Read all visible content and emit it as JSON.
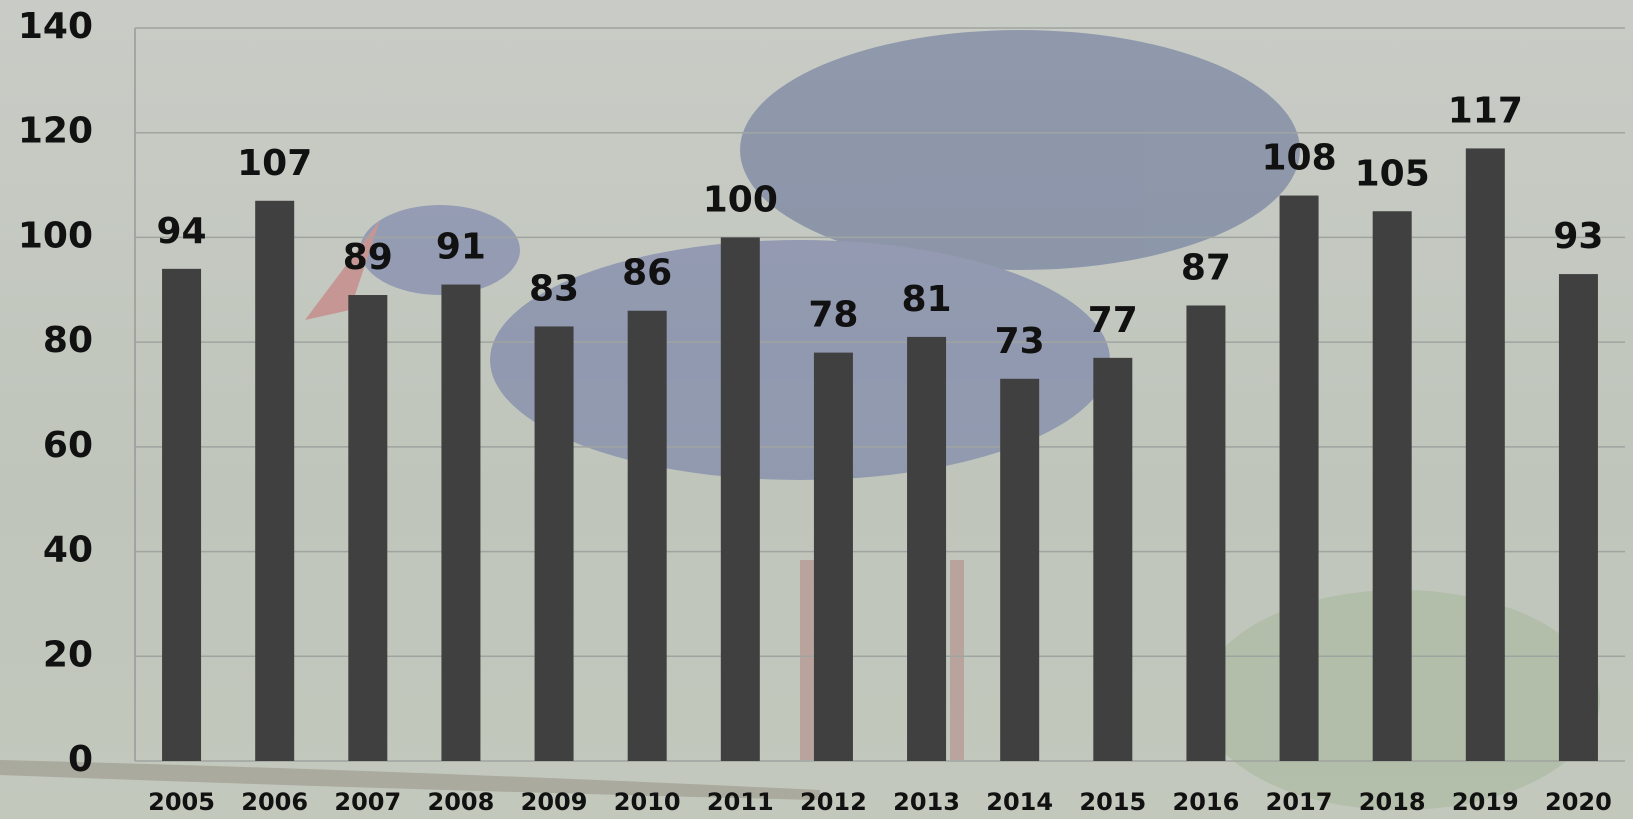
{
  "chart_data": {
    "type": "bar",
    "categories": [
      "2005",
      "2006",
      "2007",
      "2008",
      "2009",
      "2010",
      "2011",
      "2012",
      "2013",
      "2014",
      "2015",
      "2016",
      "2017",
      "2018",
      "2019",
      "2020"
    ],
    "values": [
      94,
      107,
      89,
      91,
      83,
      86,
      100,
      78,
      81,
      73,
      77,
      87,
      108,
      105,
      117,
      93
    ],
    "color": "#404040",
    "ylim": [
      0,
      140
    ],
    "yticks": [
      0,
      20,
      40,
      60,
      80,
      100,
      120,
      140
    ],
    "grid": true
  }
}
